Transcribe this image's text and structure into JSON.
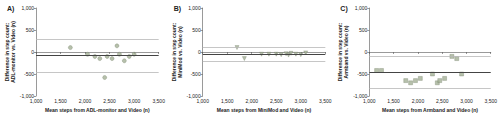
{
  "chart_data": [
    {
      "type": "scatter",
      "title": "A)",
      "x_label": "Mean steps from ADL-monitor and Video (n)",
      "y_label": "Difference in step count: ADL-monitor vs. Video (n)",
      "x": [
        1700,
        2650,
        2050,
        2200,
        2300,
        2400,
        2450,
        2550,
        2700,
        2800,
        2900,
        3000
      ],
      "values": [
        100,
        140,
        -50,
        -100,
        -150,
        -580,
        -100,
        -150,
        -50,
        -200,
        -100,
        -50
      ],
      "mean_difference": -80,
      "limits_of_agreement": [
        -460,
        300
      ],
      "xlim": [
        1000,
        3500
      ],
      "xticks": [
        1000,
        1500,
        2000,
        2500,
        3000,
        3500
      ],
      "ylim": [
        -1000,
        1000
      ],
      "yticks": [
        -1000,
        -500,
        0,
        500,
        1000
      ],
      "marker": "circle",
      "color": "#a4b096"
    },
    {
      "type": "scatter",
      "title": "B)",
      "x_label": "Mean steps from MiniMod and Video (n)",
      "y_label": "Difference in step count: MiniMod vs. Video (n)",
      "x": [
        1700,
        1850,
        2200,
        2350,
        2500,
        2600,
        2700,
        2750,
        2800,
        2900,
        3000,
        3100
      ],
      "values": [
        100,
        -150,
        -50,
        -50,
        -50,
        -60,
        -40,
        -70,
        -30,
        -50,
        -60,
        -20
      ],
      "mean_difference": -50,
      "limits_of_agreement": [
        -210,
        110
      ],
      "xlim": [
        1000,
        3500
      ],
      "xticks": [
        1000,
        1500,
        2000,
        2500,
        3000,
        3500
      ],
      "ylim": [
        -1000,
        1000
      ],
      "yticks": [
        -1000,
        -500,
        0,
        500,
        1000
      ],
      "marker": "triangle",
      "color": "#a4b096"
    },
    {
      "type": "scatter",
      "title": "C)",
      "x_label": "Mean steps from Armband and Video (n)",
      "y_label": "Difference in step count: Armband vs. Video (n)",
      "x": [
        1150,
        1250,
        1750,
        1850,
        1950,
        2050,
        2300,
        2400,
        2450,
        2550,
        2700,
        2800,
        2900
      ],
      "values": [
        -420,
        -420,
        -650,
        -700,
        -650,
        -600,
        -500,
        -700,
        -650,
        -600,
        -100,
        -150,
        -500
      ],
      "mean_difference": -470,
      "limits_of_agreement": [
        -830,
        -100
      ],
      "xlim": [
        1000,
        3500
      ],
      "xticks": [
        1000,
        1500,
        2000,
        2500,
        3000,
        3500
      ],
      "ylim": [
        -1000,
        1000
      ],
      "yticks": [
        -1000,
        -500,
        0,
        500,
        1000
      ],
      "marker": "rect",
      "color": "#a4b096"
    }
  ]
}
